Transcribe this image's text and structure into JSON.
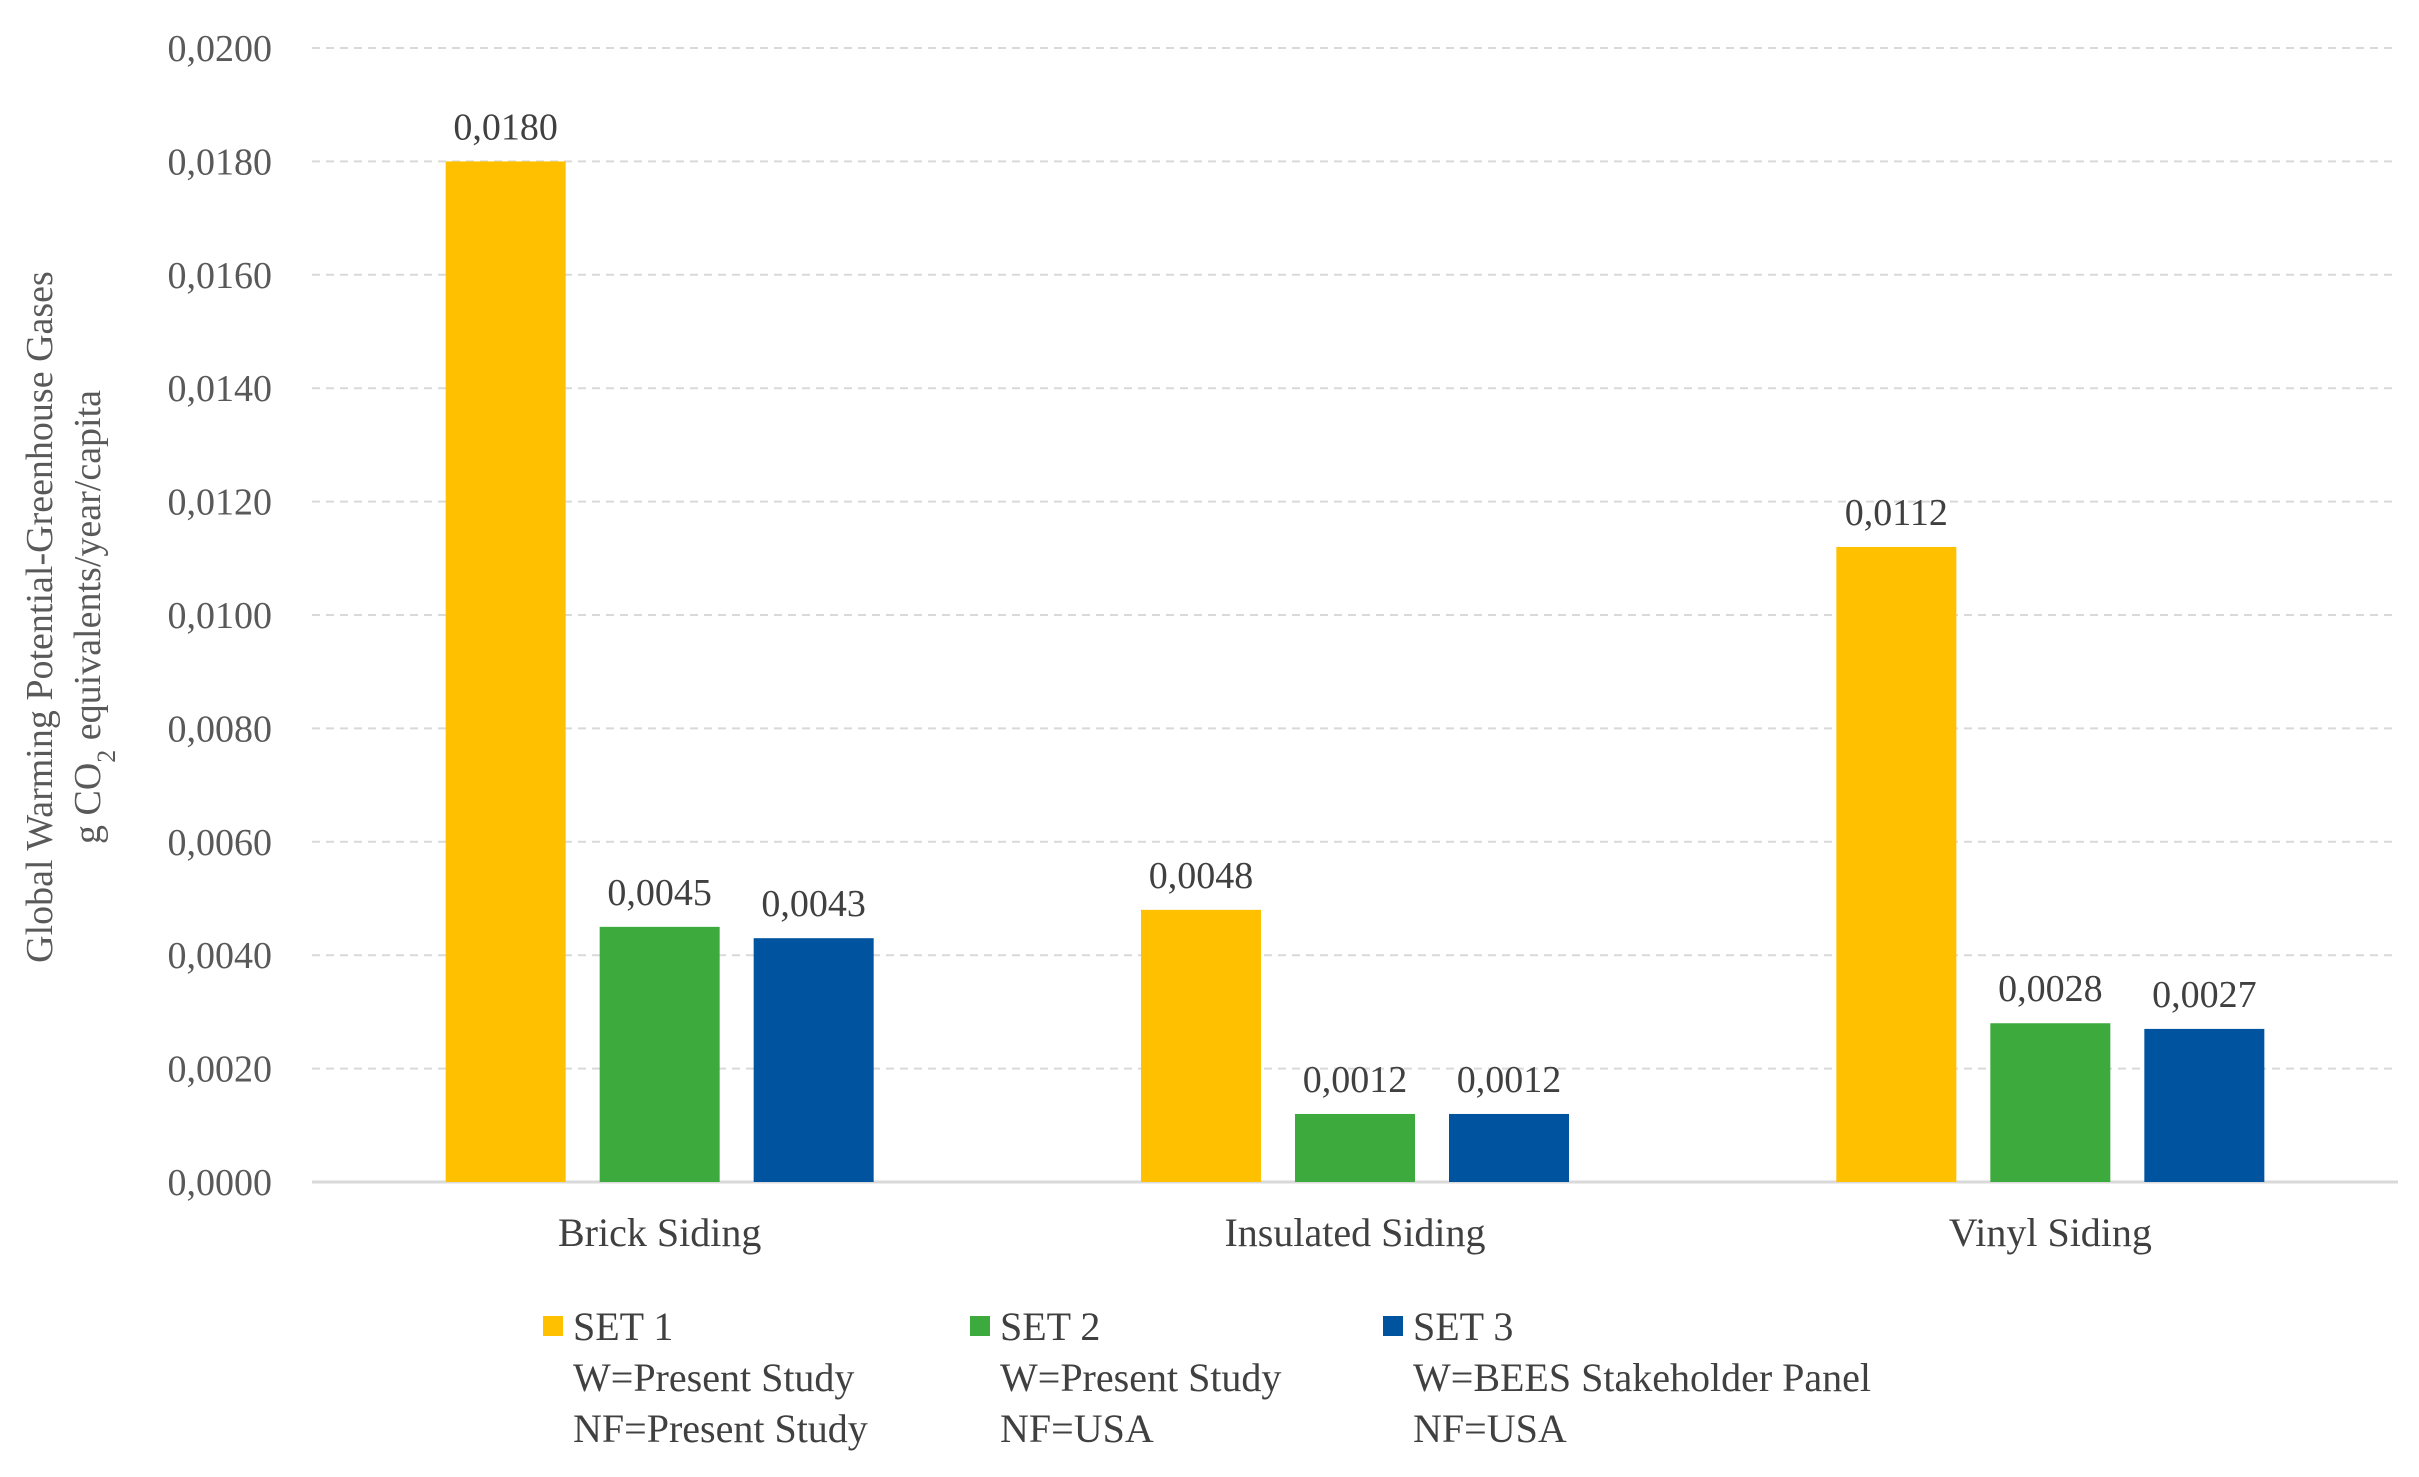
{
  "chart_data": {
    "type": "bar",
    "categories": [
      "Brick Siding",
      "Insulated Siding",
      "Vinyl Siding"
    ],
    "series": [
      {
        "name": "SET 1",
        "legend_lines": [
          "SET 1",
          "W=Present Study",
          "NF=Present Study"
        ],
        "color": "#FFC000",
        "values": [
          0.018,
          0.0048,
          0.0112
        ],
        "labels": [
          "0,0180",
          "0,0048",
          "0,0112"
        ]
      },
      {
        "name": "SET 2",
        "legend_lines": [
          "SET 2",
          "W=Present Study",
          "NF=USA"
        ],
        "color": "#3DAA3D",
        "values": [
          0.0045,
          0.0012,
          0.0028
        ],
        "labels": [
          "0,0045",
          "0,0012",
          "0,0028"
        ]
      },
      {
        "name": "SET 3",
        "legend_lines": [
          "SET 3",
          "W=BEES Stakeholder Panel",
          "NF=USA"
        ],
        "color": "#00539F",
        "values": [
          0.0043,
          0.0012,
          0.0027
        ],
        "labels": [
          "0,0043",
          "0,0012",
          "0,0027"
        ]
      }
    ],
    "ylabel_line1": "Global Warming Potential-Greenhouse Gases",
    "ylabel_line2_parts": [
      "g CO",
      "2",
      " equivalents/year/capita"
    ],
    "ylim": [
      0,
      0.02
    ],
    "yticks": [
      0,
      0.002,
      0.004,
      0.006,
      0.008,
      0.01,
      0.012,
      0.014,
      0.016,
      0.018,
      0.02
    ],
    "ytick_labels": [
      "0,0000",
      "0,0020",
      "0,0040",
      "0,0060",
      "0,0080",
      "0,0100",
      "0,0120",
      "0,0140",
      "0,0160",
      "0,0180",
      "0,0200"
    ],
    "grid": true,
    "legend_position": "bottom"
  }
}
